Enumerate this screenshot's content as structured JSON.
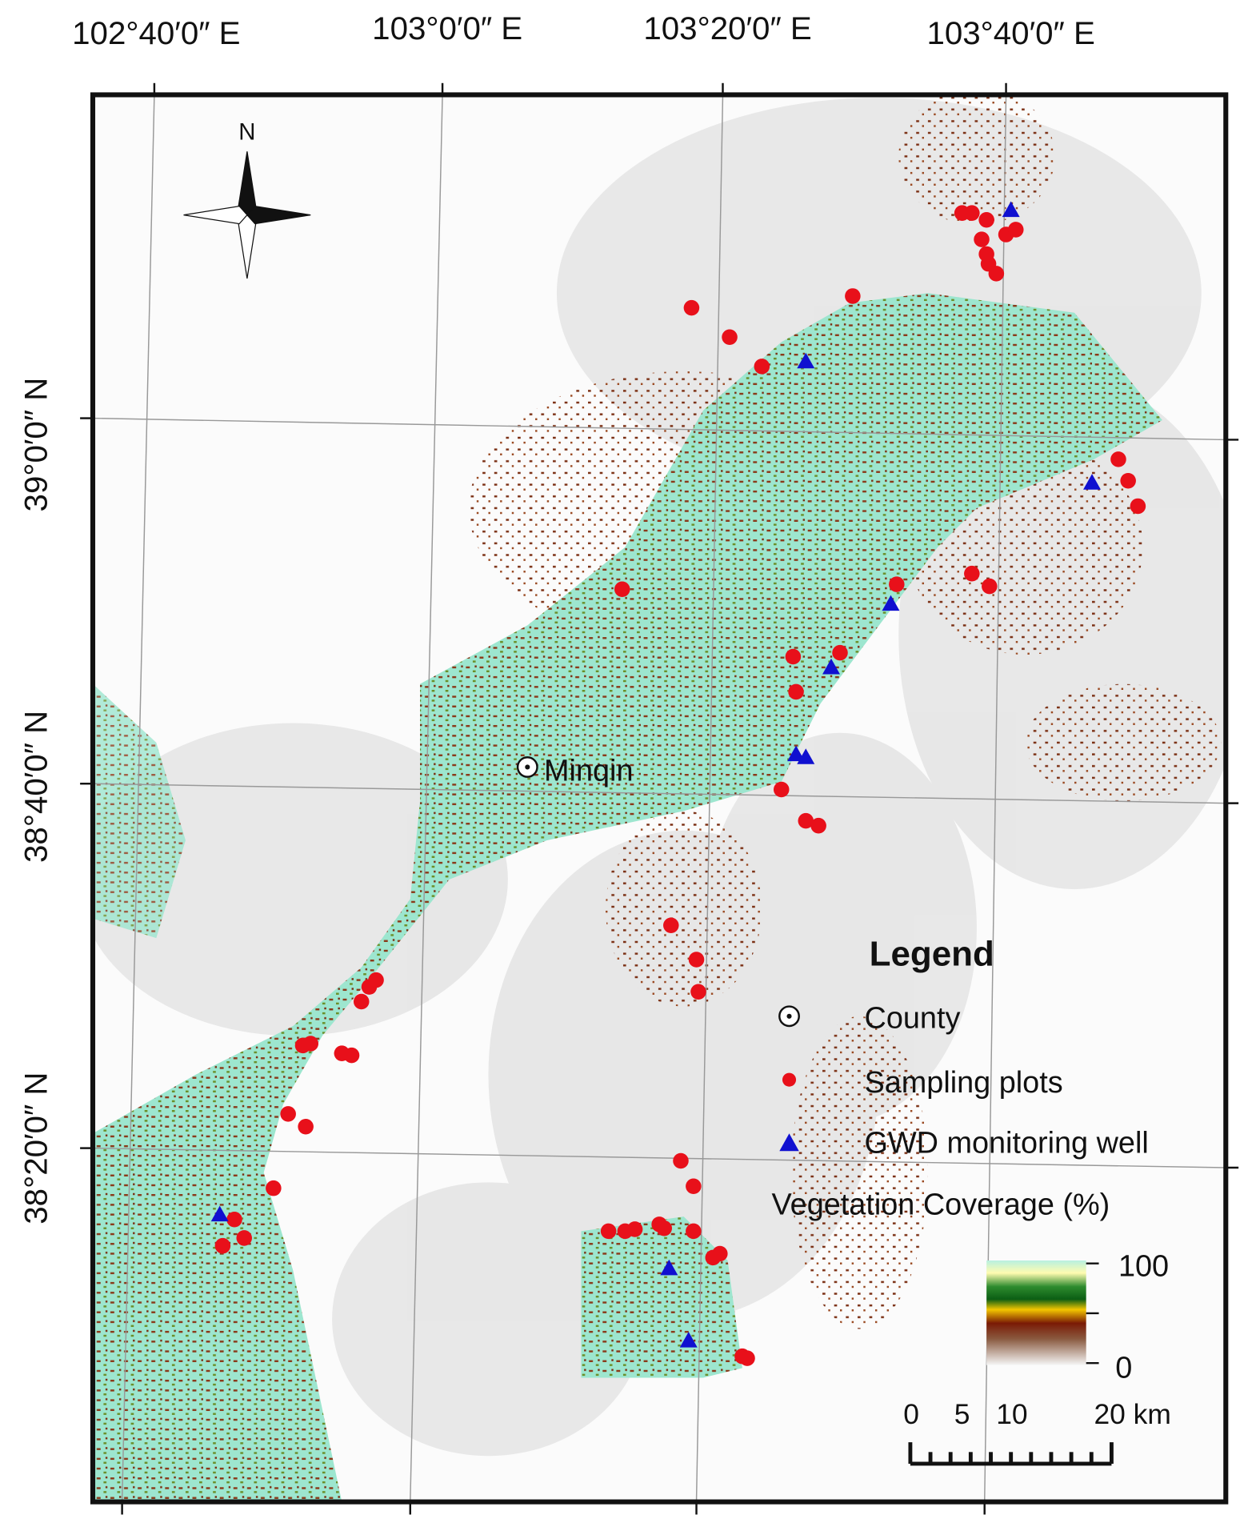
{
  "map": {
    "longitude_labels": [
      "102°40′0″ E",
      "103°0′0″ E",
      "103°20′0″ E",
      "103°40′0″ E"
    ],
    "latitude_labels": [
      "39°0′0″ N",
      "38°40′0″ N",
      "38°20′0″ N"
    ],
    "north": "N",
    "county_label": "Minqin",
    "legend": {
      "title": "Legend",
      "items": [
        "County",
        "Sampling plots",
        "GWD monitoring well"
      ],
      "ramp_title": "Vegetation Coverage (%)",
      "ramp_max": "100",
      "ramp_min": "0"
    },
    "scale_bar": {
      "labels": [
        "0",
        "5",
        "10",
        "20 km"
      ]
    }
  }
}
